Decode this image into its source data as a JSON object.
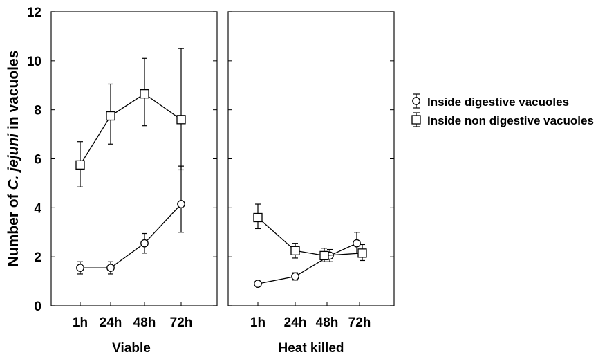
{
  "chart_data": {
    "type": "line",
    "ylabel_parts": [
      "Number of ",
      "C. jejuni",
      " in vacuoles"
    ],
    "ylim": [
      0,
      12
    ],
    "yticks": [
      "0",
      "2",
      "4",
      "6",
      "8",
      "10",
      "12"
    ],
    "categories": [
      "1h",
      "24h",
      "48h",
      "72h"
    ],
    "panels": [
      {
        "label": "Viable",
        "series": [
          {
            "name": "Inside digestive vacuoles",
            "marker": "circle",
            "values": [
              1.55,
              1.55,
              2.55,
              4.15
            ],
            "lower": [
              1.3,
              1.3,
              2.15,
              3.0
            ],
            "upper": [
              1.8,
              1.8,
              2.95,
              5.7
            ]
          },
          {
            "name": "Inside non digestive vacuoles",
            "marker": "square",
            "values": [
              5.75,
              7.75,
              8.65,
              7.6
            ],
            "lower": [
              4.85,
              6.6,
              7.35,
              5.55
            ],
            "upper": [
              6.7,
              9.05,
              10.1,
              10.5
            ]
          }
        ]
      },
      {
        "label": "Heat killed",
        "series": [
          {
            "name": "Inside digestive vacuoles",
            "marker": "circle",
            "values": [
              0.9,
              1.2,
              2.05,
              2.55
            ],
            "lower": [
              0.8,
              1.05,
              1.8,
              2.15
            ],
            "upper": [
              1.0,
              1.35,
              2.3,
              3.0
            ]
          },
          {
            "name": "Inside non digestive vacuoles",
            "marker": "square",
            "values": [
              3.6,
              2.25,
              2.05,
              2.15
            ],
            "lower": [
              3.15,
              1.95,
              1.8,
              1.85
            ],
            "upper": [
              4.15,
              2.55,
              2.35,
              2.5
            ]
          }
        ]
      }
    ],
    "legend": {
      "position": "right",
      "entries": [
        {
          "label": "Inside digestive vacuoles",
          "marker": "circle"
        },
        {
          "label": "Inside non digestive vacuoles",
          "marker": "square"
        }
      ]
    },
    "grid": false
  }
}
